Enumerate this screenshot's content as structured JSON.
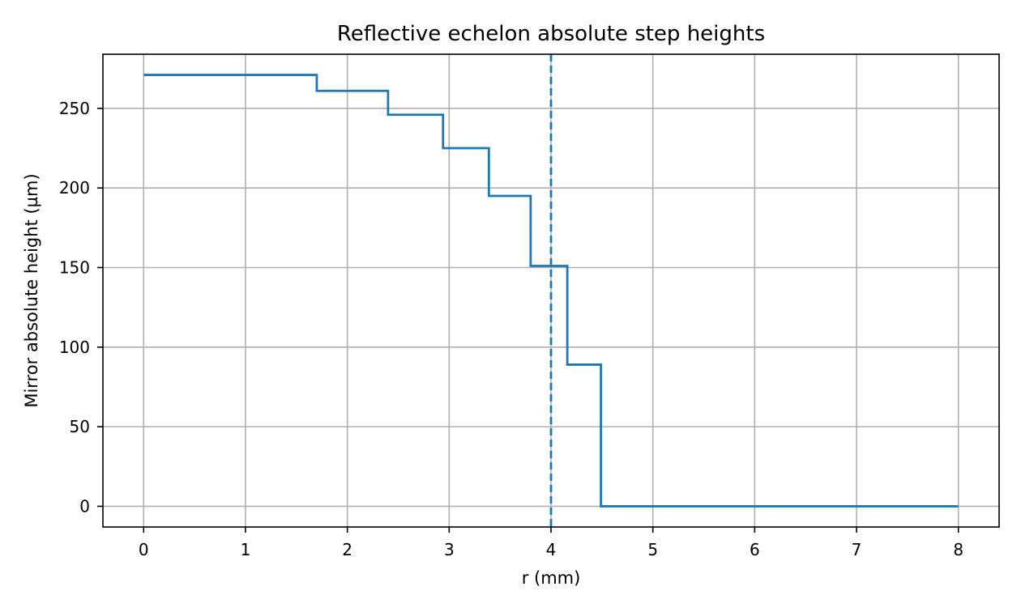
{
  "chart_data": {
    "type": "line",
    "title": "Reflective echelon absolute step heights",
    "xlabel": "r (mm)",
    "ylabel": "Mirror absolute height (µm)",
    "xlim": [
      -0.4,
      8.4
    ],
    "ylim": [
      -13,
      284
    ],
    "xticks": [
      0,
      1,
      2,
      3,
      4,
      5,
      6,
      7,
      8
    ],
    "yticks": [
      0,
      50,
      100,
      150,
      200,
      250
    ],
    "grid": true,
    "legend": "none",
    "series": [
      {
        "style": "step",
        "color": "#1f77b4",
        "x": [
          0,
          1.7,
          1.7,
          2.4,
          2.4,
          2.94,
          2.94,
          3.39,
          3.39,
          3.8,
          3.8,
          4.16,
          4.16,
          4.49,
          4.49,
          8.0
        ],
        "y": [
          271,
          271,
          261,
          261,
          246,
          246,
          225,
          225,
          195,
          195,
          151,
          151,
          89,
          89,
          0,
          0
        ]
      }
    ],
    "vlines": [
      {
        "x": 4.0,
        "color": "#1f77b4",
        "linestyle": "dashed"
      }
    ]
  }
}
